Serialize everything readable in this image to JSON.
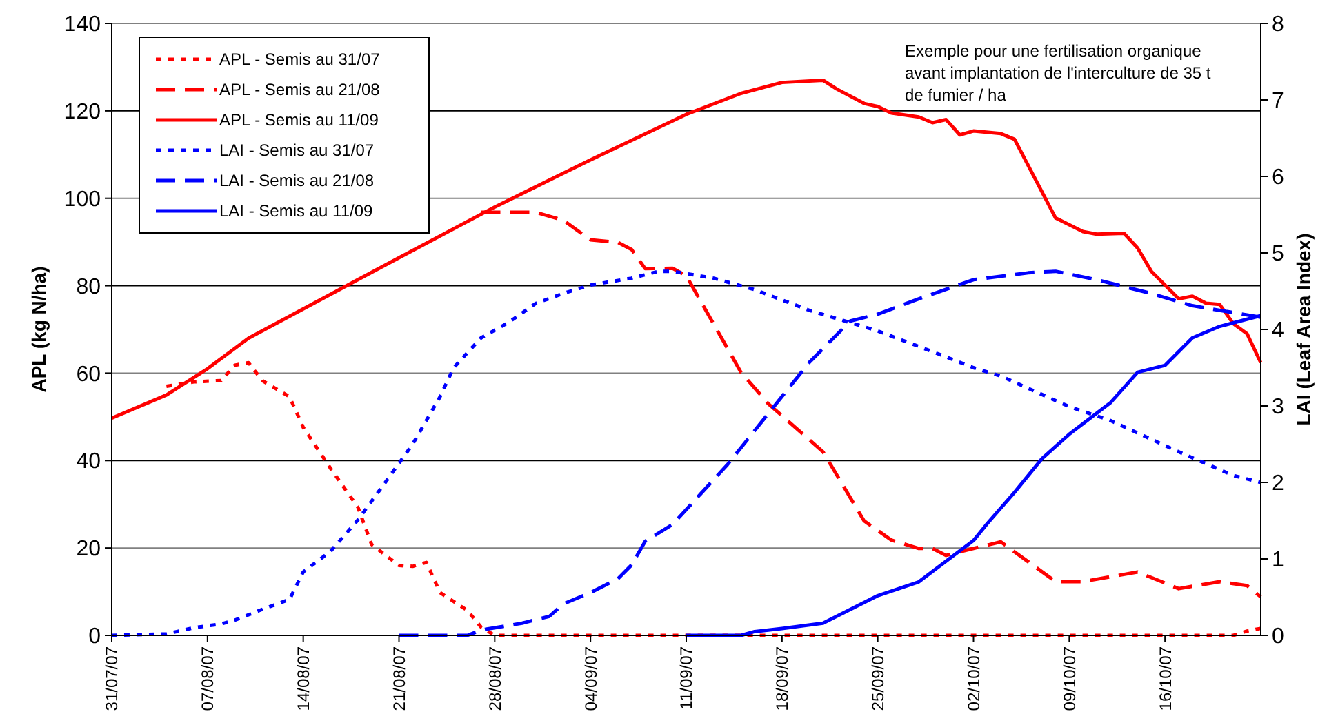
{
  "chart_data": {
    "type": "line",
    "ylabel": "APL (kg N/ha)",
    "y2label": "LAI (Leaf Area Index)",
    "annotations": [
      "Exemple pour une fertilisation organique avant implantation de l'interculture de 35 t de fumier / ha"
    ],
    "xlim": [
      "--07-31",
      "--10-23"
    ],
    "xticks": [
      {
        "value": "--07-31",
        "label": "31/07/07"
      },
      {
        "value": "--08-07",
        "label": "07/08/07"
      },
      {
        "value": "--08-14",
        "label": "14/08/07"
      },
      {
        "value": "--08-21",
        "label": "21/08/07"
      },
      {
        "value": "--08-28",
        "label": "28/08/07"
      },
      {
        "value": "--09-04",
        "label": "04/09/07"
      },
      {
        "value": "--09-11",
        "label": "11/09/07"
      },
      {
        "value": "--09-18",
        "label": "18/09/07"
      },
      {
        "value": "--09-25",
        "label": "25/09/07"
      },
      {
        "value": "--10-02",
        "label": "02/10/07"
      },
      {
        "value": "--10-09",
        "label": "09/10/07"
      },
      {
        "value": "--10-16",
        "label": "16/10/07"
      }
    ],
    "ylim": [
      0,
      140
    ],
    "yticks": [
      0,
      20,
      40,
      60,
      80,
      100,
      120,
      140
    ],
    "y2lim": [
      0,
      8
    ],
    "y2ticks": [
      0,
      1,
      2,
      3,
      4,
      5,
      6,
      7,
      8
    ],
    "grid": "y",
    "legend": "top left",
    "series": [
      {
        "name": "APL - Semis au 31/07",
        "color": "#ff0000",
        "line_style": "dotted",
        "x": [
          "--08-04",
          "--08-06",
          "--08-08",
          "--08-09",
          "--08-10",
          "--08-11",
          "--08-13",
          "--08-14",
          "--08-16",
          "--08-18",
          "--08-19",
          "--08-21",
          "--08-22",
          "--08-23",
          "--08-24",
          "--08-26",
          "--08-27",
          "--08-28",
          "--10-21",
          "--10-22",
          "--10-23"
        ],
        "values": [
          57,
          58,
          58.3,
          61.8,
          62.4,
          58.3,
          54.6,
          47.6,
          38.2,
          29.3,
          20.8,
          16,
          15.8,
          16.7,
          9.8,
          5.7,
          1.9,
          0,
          0,
          1,
          1.6
        ]
      },
      {
        "name": "APL - Semis au 21/08",
        "color": "#ff0000",
        "line_style": "dashed",
        "x": [
          "--08-27",
          "--08-31",
          "--09-02",
          "--09-04",
          "--09-06",
          "--09-07",
          "--09-08",
          "--09-10",
          "--09-11",
          "--09-15",
          "--09-17",
          "--09-21",
          "--09-24",
          "--09-26",
          "--09-28",
          "--09-29",
          "--09-30",
          "--10-02",
          "--10-04",
          "--10-08",
          "--10-10",
          "--10-14",
          "--10-17",
          "--10-20",
          "--10-22",
          "--10-23"
        ],
        "values": [
          96.8,
          96.8,
          95,
          90.5,
          89.9,
          88.3,
          83.9,
          84,
          82.3,
          60.2,
          53,
          42,
          26.2,
          21.8,
          19.9,
          19.9,
          18.3,
          19.9,
          21.4,
          12.3,
          12.3,
          14.5,
          10.7,
          12.3,
          11.4,
          8.8
        ]
      },
      {
        "name": "APL - Semis au 11/09",
        "color": "#ff0000",
        "line_style": "solid",
        "x": [
          "--07-31",
          "--08-04",
          "--08-07",
          "--08-10",
          "--08-14",
          "--08-21",
          "--08-28",
          "--09-04",
          "--09-11",
          "--09-15",
          "--09-18",
          "--09-21",
          "--09-22",
          "--09-24",
          "--09-25",
          "--09-26",
          "--09-28",
          "--09-29",
          "--09-30",
          "--10-01",
          "--10-02",
          "--10-04",
          "--10-05",
          "--10-08",
          "--10-10",
          "--10-11",
          "--10-13",
          "--10-14",
          "--10-15",
          "--10-17",
          "--10-18",
          "--10-19",
          "--10-20",
          "--10-21",
          "--10-22",
          "--10-23"
        ],
        "values": [
          49.7,
          55,
          61,
          68,
          74.7,
          86.4,
          98,
          108.8,
          119.2,
          124,
          126.5,
          127,
          125,
          121.7,
          121,
          119.5,
          118.6,
          117.3,
          118,
          114.5,
          115.4,
          114.8,
          113.5,
          95.5,
          92.4,
          91.8,
          92,
          88.6,
          83.3,
          77,
          77.6,
          76,
          75.7,
          71.3,
          69,
          62.4
        ]
      },
      {
        "name": "LAI - Semis au 31/07",
        "color": "#0000ff",
        "line_style": "dotted",
        "axis": "y2",
        "x": [
          "--07-31",
          "--08-04",
          "--08-06",
          "--08-08",
          "--08-09",
          "--08-11",
          "--08-13",
          "--08-14",
          "--08-16",
          "--08-18",
          "--08-20",
          "--08-22",
          "--08-24",
          "--08-25",
          "--08-27",
          "--08-29",
          "--08-31",
          "--09-02",
          "--09-04",
          "--09-07",
          "--09-09",
          "--09-10",
          "--09-13",
          "--09-16",
          "--09-20",
          "--09-25",
          "--09-29",
          "--10-02",
          "--10-04",
          "--10-09",
          "--10-12",
          "--10-17",
          "--10-21",
          "--10-23"
        ],
        "values": [
          0,
          0.02,
          0.1,
          0.15,
          0.2,
          0.34,
          0.47,
          0.83,
          1.1,
          1.51,
          2,
          2.5,
          3.12,
          3.5,
          3.89,
          4.09,
          4.34,
          4.47,
          4.58,
          4.67,
          4.76,
          4.76,
          4.67,
          4.52,
          4.25,
          3.98,
          3.71,
          3.5,
          3.39,
          2.99,
          2.81,
          2.4,
          2.09,
          2
        ]
      },
      {
        "name": "LAI - Semis au 21/08",
        "color": "#0000ff",
        "line_style": "dashed",
        "axis": "y2",
        "x": [
          "--08-21",
          "--08-26",
          "--08-27",
          "--08-30",
          "--09-01",
          "--09-02",
          "--09-04",
          "--09-06",
          "--09-07",
          "--09-08",
          "--09-10",
          "--09-14",
          "--09-17",
          "--09-20",
          "--09-23",
          "--09-25",
          "--09-28",
          "--10-02",
          "--10-06",
          "--10-08",
          "--10-11",
          "--10-15",
          "--10-18",
          "--10-23"
        ],
        "values": [
          0,
          0,
          0.07,
          0.16,
          0.25,
          0.41,
          0.56,
          0.74,
          0.92,
          1.23,
          1.45,
          2.23,
          2.9,
          3.57,
          4.11,
          4.2,
          4.4,
          4.65,
          4.74,
          4.76,
          4.65,
          4.47,
          4.31,
          4.16
        ]
      },
      {
        "name": "LAI - Semis au 11/09",
        "color": "#0000ff",
        "line_style": "solid",
        "axis": "y2",
        "x": [
          "--09-11",
          "--09-15",
          "--09-16",
          "--09-18",
          "--09-21",
          "--09-23",
          "--09-25",
          "--09-28",
          "--09-30",
          "--10-02",
          "--10-03",
          "--10-05",
          "--10-07",
          "--10-09",
          "--10-12",
          "--10-14",
          "--10-16",
          "--10-18",
          "--10-20",
          "--10-23"
        ],
        "values": [
          0,
          0,
          0.05,
          0.09,
          0.16,
          0.34,
          0.52,
          0.7,
          0.97,
          1.24,
          1.46,
          1.87,
          2.31,
          2.63,
          3.04,
          3.44,
          3.53,
          3.89,
          4.04,
          4.18
        ]
      }
    ]
  }
}
